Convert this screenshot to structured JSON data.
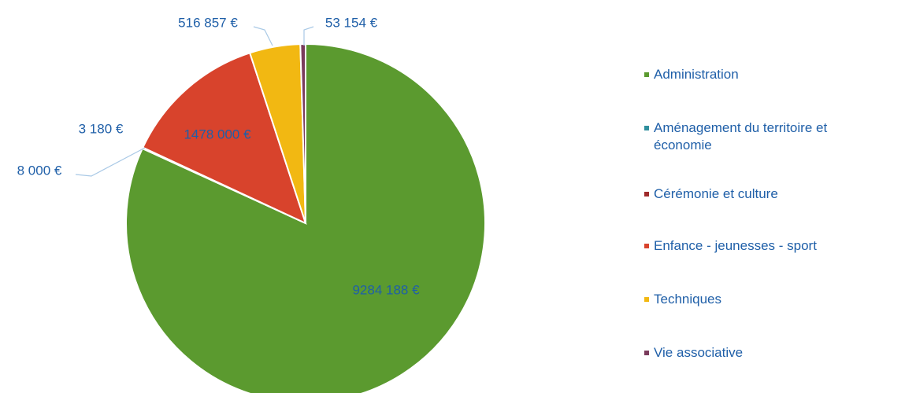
{
  "chart_data": {
    "type": "pie",
    "categories": [
      "Administration",
      "Aménagement du territoire et économie",
      "Cérémonie et culture",
      "Enfance - jeunesses - sport",
      "Techniques",
      "Vie associative"
    ],
    "values": [
      9284188,
      8000,
      3180,
      1478000,
      516857,
      53154
    ],
    "value_labels": [
      "9284 188 €",
      "8 000 €",
      "3 180 €",
      "1478 000 €",
      "516 857 €",
      "53 154 €"
    ],
    "colors": [
      "#5b9a2f",
      "#2f8f9d",
      "#9e2a2b",
      "#d8432c",
      "#f2b812",
      "#7a3b5c"
    ],
    "legend": "right"
  }
}
